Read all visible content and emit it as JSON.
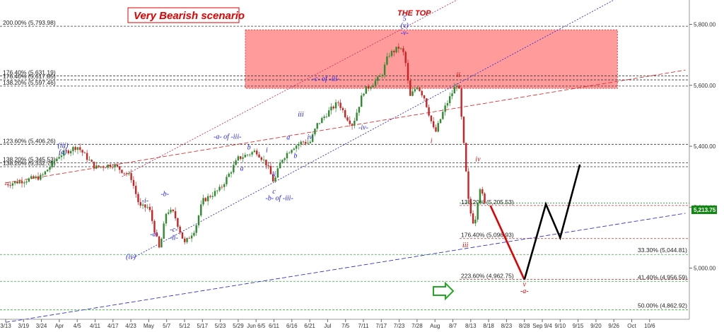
{
  "chart_data": {
    "type": "candlestick",
    "title": "Very Bearish scenario",
    "annotation_top": "THE TOP",
    "x_ticks": [
      "3/13",
      "3/19",
      "3/24",
      "Apr",
      "4/5",
      "4/11",
      "4/17",
      "4/23",
      "May",
      "5/7",
      "5/12",
      "5/17",
      "5/23",
      "5/29",
      "Jun 6/5",
      "6/11",
      "6/16",
      "6/21",
      "Jul",
      "7/5",
      "7/11",
      "7/17",
      "7/23",
      "7/28",
      "Aug",
      "8/7",
      "8/13",
      "8/18",
      "8/23",
      "8/28",
      "Sep 9/4",
      "9/10",
      "9/15",
      "9/20",
      "9/26",
      "Oct",
      "10/6"
    ],
    "y_ticks": [
      5000,
      5200,
      5400,
      5600,
      5800
    ],
    "y_tick_labels": [
      "5,000.00",
      "5,200.00",
      "5,400.00",
      "5,600.00",
      "5,800.00"
    ],
    "ylim": [
      4832,
      5880
    ],
    "last_price": 5213.75,
    "last_price_label": "5,213.75",
    "fib_levels": [
      {
        "label": "200.00% (5,793.98)",
        "value": 5793.98,
        "side": "left"
      },
      {
        "label": "176.40% (5,631.19)",
        "value": 5631.19,
        "side": "left"
      },
      {
        "label": "176.40% (5,617.85)",
        "value": 5617.85,
        "side": "left"
      },
      {
        "label": "138.20% (5,597.46)",
        "value": 5597.46,
        "side": "left"
      },
      {
        "label": "123.60% (5,406.26)",
        "value": 5406.26,
        "side": "left"
      },
      {
        "label": "138.20% (5,345.53)",
        "value": 5345.53,
        "side": "left"
      },
      {
        "label": "138.20% (5,332.75)",
        "value": 5332.75,
        "side": "left"
      },
      {
        "label": "138.20% (5,205.53)",
        "value": 5205.53,
        "side": "mid"
      },
      {
        "label": "176.40% (5,096.93)",
        "value": 5096.93,
        "side": "mid"
      },
      {
        "label": "223.60% (4,962.75)",
        "value": 4962.75,
        "side": "mid"
      },
      {
        "label": "33.30% (5,044.81)",
        "value": 5044.81,
        "side": "right"
      },
      {
        "label": "41.40% (4,956.59)",
        "value": 4956.59,
        "side": "right"
      },
      {
        "label": "50.00% (4,862.92)",
        "value": 4862.92,
        "side": "right"
      }
    ],
    "price_path": [
      [
        0,
        5275
      ],
      [
        2,
        5300
      ],
      [
        3,
        5370
      ],
      [
        4,
        5400
      ],
      [
        5,
        5330
      ],
      [
        6,
        5340
      ],
      [
        7,
        5300
      ],
      [
        7.5,
        5200
      ],
      [
        8,
        5200
      ],
      [
        8.6,
        5060
      ],
      [
        9,
        5190
      ],
      [
        9.4,
        5180
      ],
      [
        10,
        5080
      ],
      [
        10.6,
        5130
      ],
      [
        11,
        5220
      ],
      [
        12,
        5260
      ],
      [
        12.6,
        5320
      ],
      [
        13,
        5360
      ],
      [
        14,
        5385
      ],
      [
        14.6,
        5340
      ],
      [
        15,
        5280
      ],
      [
        15.4,
        5355
      ],
      [
        16,
        5395
      ],
      [
        16.6,
        5415
      ],
      [
        17,
        5410
      ],
      [
        17.4,
        5470
      ],
      [
        18,
        5510
      ],
      [
        18.6,
        5545
      ],
      [
        19,
        5500
      ],
      [
        19.4,
        5470
      ],
      [
        20,
        5580
      ],
      [
        21,
        5630
      ],
      [
        21.4,
        5700
      ],
      [
        22,
        5725
      ],
      [
        22.3,
        5700
      ],
      [
        22.6,
        5560
      ],
      [
        23,
        5600
      ],
      [
        23.4,
        5560
      ],
      [
        24,
        5440
      ],
      [
        24.5,
        5520
      ],
      [
        25,
        5580
      ],
      [
        25.3,
        5615
      ],
      [
        25.6,
        5410
      ],
      [
        25.9,
        5200
      ],
      [
        26.2,
        5140
      ],
      [
        26.5,
        5270
      ],
      [
        26.8,
        5205
      ]
    ],
    "scenario_red": [
      [
        27.1,
        5205
      ],
      [
        29.0,
        4962
      ]
    ],
    "scenario_black": [
      [
        29.0,
        4962
      ],
      [
        30.2,
        5210
      ],
      [
        31.0,
        5100
      ],
      [
        32.1,
        5340
      ]
    ],
    "zone": {
      "x0": 13.4,
      "x1": 34.2,
      "y0": 5590,
      "y1": 5782
    },
    "channels": [
      {
        "name": "upper-channel",
        "color": "#cc3366",
        "dash": "2,2",
        "p0": [
          6.5,
          5300
        ],
        "p1": [
          27,
          5935
        ]
      },
      {
        "name": "middle-channel",
        "color": "#3333cc",
        "dash": "2,2",
        "p0": [
          7,
          5030
        ],
        "p1": [
          34,
          5880
        ]
      },
      {
        "name": "trend-line",
        "color": "#e03030",
        "dash": "6,3",
        "p0": [
          0,
          5280
        ],
        "p1": [
          38,
          5650
        ]
      },
      {
        "name": "lower-channel",
        "color": "#3333cc",
        "dash": "6,3",
        "p0": [
          0,
          4822
        ],
        "p1": [
          38,
          5180
        ]
      }
    ],
    "wave_labels_blue": [
      {
        "t": "(iii)",
        "x": 3.2,
        "y": 5395
      },
      {
        "t": "(c)",
        "x": 3.2,
        "y": 5375
      },
      {
        "t": "(iv)",
        "x": 7.0,
        "y": 5030
      },
      {
        "t": "-a-",
        "x": 8.3,
        "y": 5105
      },
      {
        "t": "-i-",
        "x": 7.8,
        "y": 5215
      },
      {
        "t": "-b-",
        "x": 8.9,
        "y": 5237
      },
      {
        "t": "-c-",
        "x": 9.4,
        "y": 5120
      },
      {
        "t": "-ii-",
        "x": 9.4,
        "y": 5093
      },
      {
        "t": "-a- of -iii-",
        "x": 12.4,
        "y": 5424
      },
      {
        "t": "a",
        "x": 13.2,
        "y": 5320
      },
      {
        "t": "b",
        "x": 13.6,
        "y": 5390
      },
      {
        "t": "c",
        "x": 15.0,
        "y": 5245
      },
      {
        "t": "-b- of -iii-",
        "x": 15.3,
        "y": 5223
      },
      {
        "t": "i",
        "x": 14.6,
        "y": 5380
      },
      {
        "t": "ii",
        "x": 15.0,
        "y": 5302
      },
      {
        "t": "b",
        "x": 16.2,
        "y": 5362
      },
      {
        "t": "a",
        "x": 15.8,
        "y": 5422
      },
      {
        "t": "iv",
        "x": 17.0,
        "y": 5423
      },
      {
        "t": "iii",
        "x": 16.5,
        "y": 5497
      },
      {
        "t": "-c- of -iii-",
        "x": 17.9,
        "y": 5615
      },
      {
        "t": "-iv-",
        "x": 20.0,
        "y": 5455
      },
      {
        "t": "5",
        "x": 22.3,
        "y": 5812
      },
      {
        "t": "(v)",
        "x": 22.3,
        "y": 5790
      },
      {
        "t": "-v-",
        "x": 22.3,
        "y": 5765
      }
    ],
    "wave_labels_red": [
      {
        "t": "ii",
        "x": 25.3,
        "y": 5627
      },
      {
        "t": "i",
        "x": 23.8,
        "y": 5410
      },
      {
        "t": "iv",
        "x": 26.4,
        "y": 5350
      },
      {
        "t": "iii",
        "x": 25.7,
        "y": 5068
      },
      {
        "t": "v",
        "x": 29.0,
        "y": 4940
      },
      {
        "t": "-a-",
        "x": 29.0,
        "y": 4918
      }
    ]
  }
}
